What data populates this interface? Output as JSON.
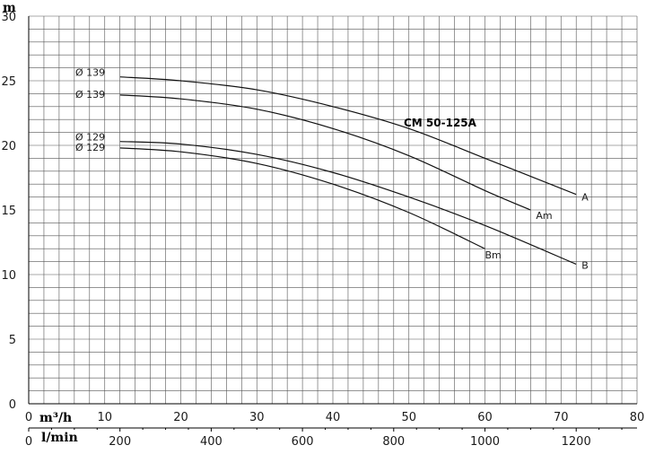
{
  "chart_data": {
    "type": "line",
    "title": "CM 50-125A",
    "ylabel": "m",
    "xlabel_primary": "m³/h",
    "xlabel_secondary": "l/min",
    "xlim": [
      0,
      80
    ],
    "ylim": [
      0,
      30
    ],
    "x_ticks": [
      "0",
      "10",
      "20",
      "30",
      "40",
      "50",
      "60",
      "70",
      "80"
    ],
    "y_ticks": [
      "0",
      "5",
      "10",
      "15",
      "20",
      "25",
      "30"
    ],
    "x2_ticks": [
      "0",
      "200",
      "400",
      "600",
      "800",
      "1000",
      "1200"
    ],
    "x2_tick_values_lmin": [
      0,
      200,
      400,
      600,
      800,
      1000,
      1200
    ],
    "grid": true,
    "series": [
      {
        "name": "A",
        "diameter_label": "Ø 139",
        "x": [
          12,
          20,
          30,
          40,
          50,
          60,
          72
        ],
        "y": [
          25.3,
          25.0,
          24.3,
          23.0,
          21.3,
          19.0,
          16.2
        ]
      },
      {
        "name": "Am",
        "diameter_label": "Ø 139",
        "x": [
          12,
          20,
          30,
          40,
          50,
          60,
          66
        ],
        "y": [
          23.9,
          23.6,
          22.8,
          21.3,
          19.2,
          16.5,
          15.0
        ]
      },
      {
        "name": "B",
        "diameter_label": "Ø 129",
        "x": [
          12,
          20,
          30,
          40,
          50,
          60,
          72
        ],
        "y": [
          20.3,
          20.1,
          19.3,
          17.9,
          16.0,
          13.8,
          10.8
        ]
      },
      {
        "name": "Bm",
        "diameter_label": "Ø 129",
        "x": [
          12,
          20,
          30,
          40,
          50,
          60
        ],
        "y": [
          19.8,
          19.5,
          18.6,
          17.0,
          14.8,
          12.0
        ]
      }
    ]
  }
}
